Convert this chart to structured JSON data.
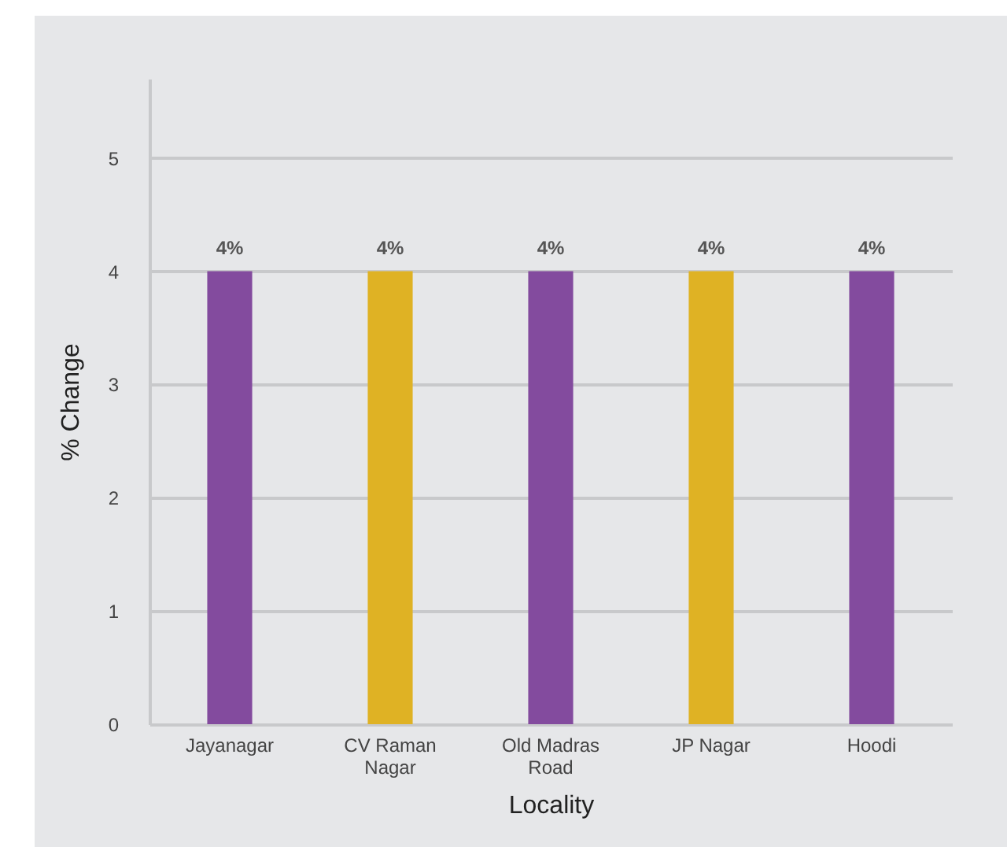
{
  "chart_data": {
    "type": "bar",
    "xlabel": "Locality",
    "ylabel": "% Change",
    "categories": [
      [
        "Jayanagar"
      ],
      [
        "CV Raman",
        "Nagar"
      ],
      [
        "Old Madras",
        "Road"
      ],
      [
        "JP Nagar"
      ],
      [
        "Hoodi"
      ]
    ],
    "values": [
      4,
      4,
      4,
      4,
      4
    ],
    "colors": [
      "#834b9e",
      "#dfb224",
      "#834b9e",
      "#dfb224",
      "#834b9e"
    ],
    "value_labels": [
      "4%",
      "4%",
      "4%",
      "4%",
      "4%"
    ],
    "ylim": [
      0,
      5.7
    ],
    "yticks": [
      0,
      1,
      2,
      3,
      4,
      5
    ],
    "grid": "y"
  }
}
